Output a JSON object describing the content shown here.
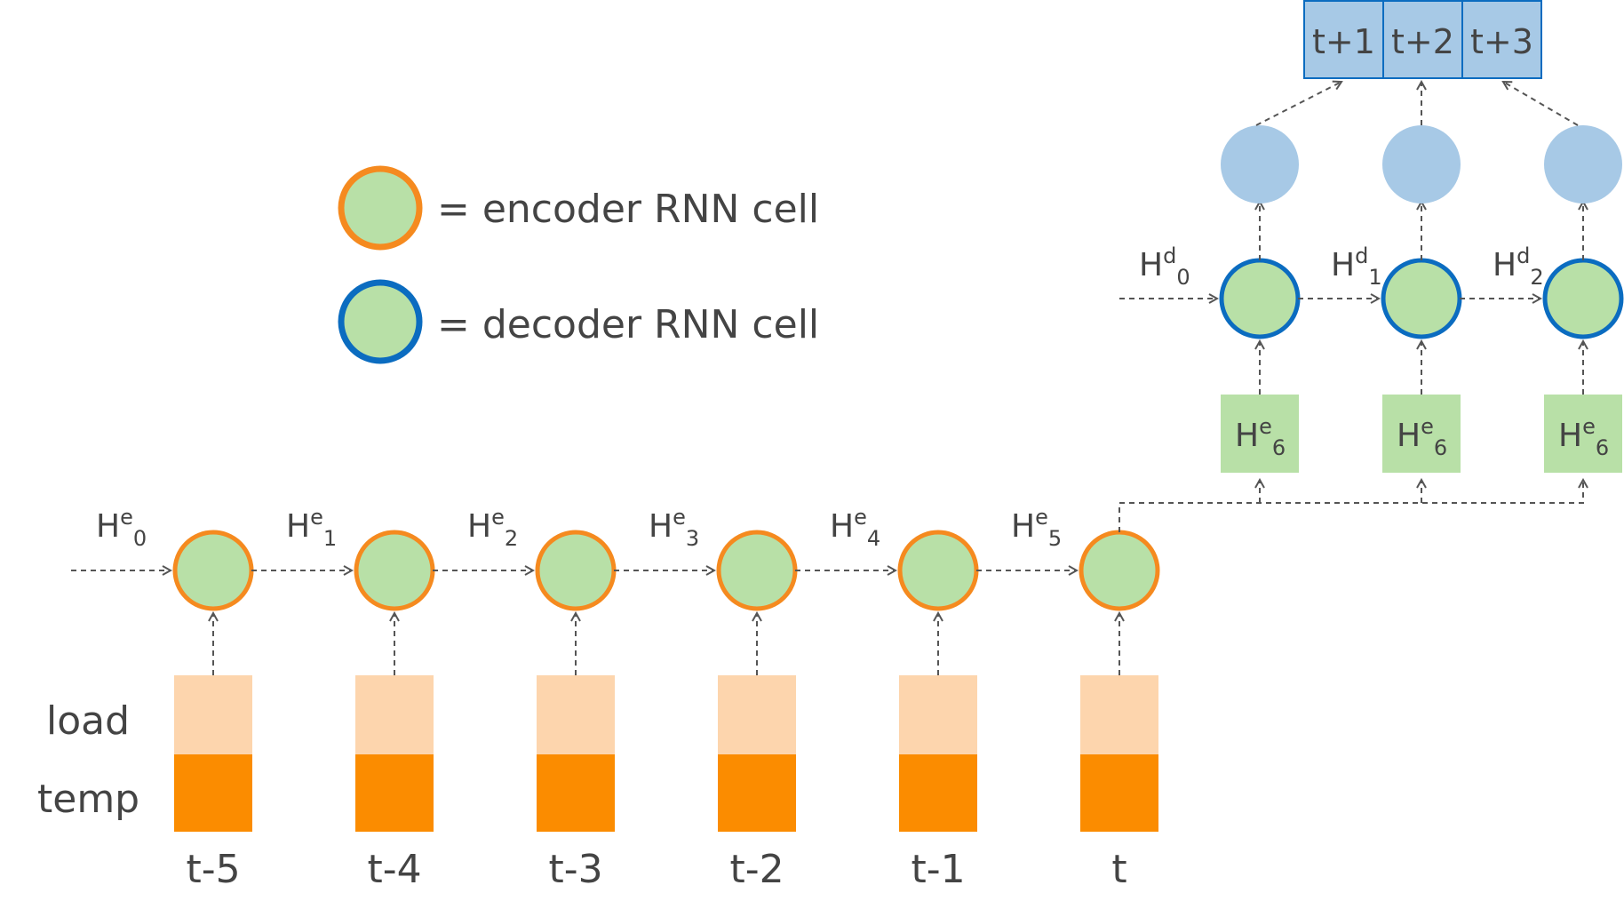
{
  "legend": {
    "encoder": "= encoder RNN cell",
    "decoder": "= decoder RNN cell"
  },
  "features": [
    "load",
    "temp"
  ],
  "encoder": {
    "time_labels": [
      "t-5",
      "t-4",
      "t-3",
      "t-2",
      "t-1",
      "t"
    ],
    "hidden_base": "H",
    "hidden_sup": "e",
    "hidden_subs": [
      "0",
      "1",
      "2",
      "3",
      "4",
      "5"
    ]
  },
  "decoder": {
    "hidden_base": "H",
    "hidden_sup": "d",
    "hidden_subs": [
      "0",
      "1",
      "2"
    ],
    "context_base": "H",
    "context_sup": "e",
    "context_sub": "6",
    "outputs": [
      "t+1",
      "t+2",
      "t+3"
    ]
  },
  "colors": {
    "encoder_border": "#f58a1f",
    "decoder_border": "#0b6cc0",
    "cell_fill": "#b8e0a7",
    "load_fill": "#fdd5ad",
    "temp_fill": "#fb8c00",
    "output_fill": "#a7c9e6",
    "context_fill": "#b8e0a7"
  }
}
